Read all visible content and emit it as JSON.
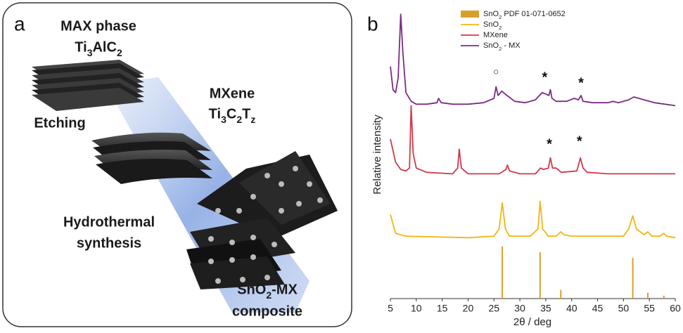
{
  "panel_a": {
    "label": "a",
    "max_title": "MAX phase",
    "max_formula": "Ti3AlC2",
    "mxene_title": "MXene",
    "mxene_formula": "Ti3C2Tz",
    "step1": "Etching",
    "step2_line1": "Hydrothermal",
    "step2_line2": "synthesis",
    "product_line1": "SnO2-MX",
    "product_line2": "composite"
  },
  "chart_data": {
    "type": "line",
    "panel_label": "b",
    "x_label": "2θ / deg",
    "y_label": "Relative intensity",
    "xlim": [
      5,
      60
    ],
    "xticks": [
      5,
      10,
      15,
      20,
      25,
      30,
      35,
      40,
      45,
      50,
      55,
      60
    ],
    "ylim": [
      0,
      100
    ],
    "series": [
      {
        "name": "SnO2 PDF 01-071-0652",
        "type": "bar",
        "color": "#d6a12b",
        "x": [
          26.6,
          33.9,
          37.9,
          51.8,
          54.7,
          57.8
        ],
        "values": [
          18,
          16,
          3,
          14,
          2,
          1
        ]
      },
      {
        "name": "SnO2",
        "type": "line",
        "color": "#f2b613",
        "x": [
          5,
          6,
          8,
          20,
          25,
          26,
          26.6,
          27.2,
          28,
          32,
          33.5,
          33.9,
          34.4,
          35.5,
          37,
          37.9,
          38.5,
          40,
          50,
          51,
          51.8,
          52.5,
          54,
          54.7,
          55.5,
          57,
          57.8,
          58.3,
          60
        ],
        "values": [
          29,
          22.5,
          21.5,
          21,
          21.5,
          24,
          33,
          24,
          21.5,
          21.5,
          24,
          33.5,
          24,
          21.5,
          21.5,
          23,
          22,
          21.5,
          21.5,
          24,
          28.5,
          24,
          22,
          23,
          21.5,
          21.5,
          22.5,
          21.5,
          21
        ]
      },
      {
        "name": "MXene",
        "type": "line",
        "color": "#d2394a",
        "x": [
          5,
          6,
          7,
          8,
          8.7,
          9,
          9.4,
          10,
          12,
          17,
          18,
          18.3,
          18.7,
          20,
          26,
          27.3,
          27.6,
          28,
          30,
          33,
          34,
          34.5,
          35.5,
          35.9,
          36.3,
          37,
          38,
          41,
          41.7,
          42.2,
          43,
          47,
          52,
          56,
          60
        ],
        "values": [
          55,
          47,
          44.5,
          44,
          45,
          66.5,
          50,
          45,
          43.5,
          43,
          45,
          51.5,
          45,
          43,
          43,
          44.5,
          46,
          44,
          43,
          43,
          45,
          44.5,
          45,
          48.5,
          45,
          45,
          43.5,
          44,
          48.5,
          45,
          43.5,
          43,
          43,
          43,
          43
        ]
      },
      {
        "name": "SnO2 - MX",
        "type": "line",
        "color": "#7a2c82",
        "x": [
          5,
          5.5,
          6,
          6.5,
          7,
          7.4,
          8,
          9,
          10,
          12,
          14,
          14.3,
          14.8,
          17,
          20,
          23,
          25,
          25.4,
          25.8,
          26.5,
          27.5,
          29,
          31,
          33,
          34.3,
          35,
          35.6,
          35.9,
          36.2,
          37,
          39,
          40.5,
          41.3,
          41.8,
          42.2,
          44,
          47,
          48,
          49,
          51,
          52,
          54,
          56,
          58,
          60
        ],
        "values": [
          80,
          72,
          71,
          76,
          98,
          85,
          71,
          68,
          67,
          67,
          67.5,
          69,
          67.5,
          67,
          67,
          67.5,
          69,
          73,
          70,
          71.5,
          70,
          68,
          67.5,
          68.5,
          71,
          70.5,
          70,
          72,
          69,
          68,
          68,
          69,
          68.5,
          70,
          68,
          67.5,
          67.5,
          68,
          67.5,
          68.5,
          69.5,
          68.5,
          67.5,
          67,
          66.5
        ]
      }
    ],
    "annotations": [
      {
        "text": "○",
        "x": 25.4,
        "y": 78
      },
      {
        "text": "*",
        "x": 34.8,
        "y": 76
      },
      {
        "text": "*",
        "x": 41.8,
        "y": 74
      },
      {
        "text": "*",
        "x": 35.7,
        "y": 53
      },
      {
        "text": "*",
        "x": 41.5,
        "y": 54
      }
    ]
  }
}
